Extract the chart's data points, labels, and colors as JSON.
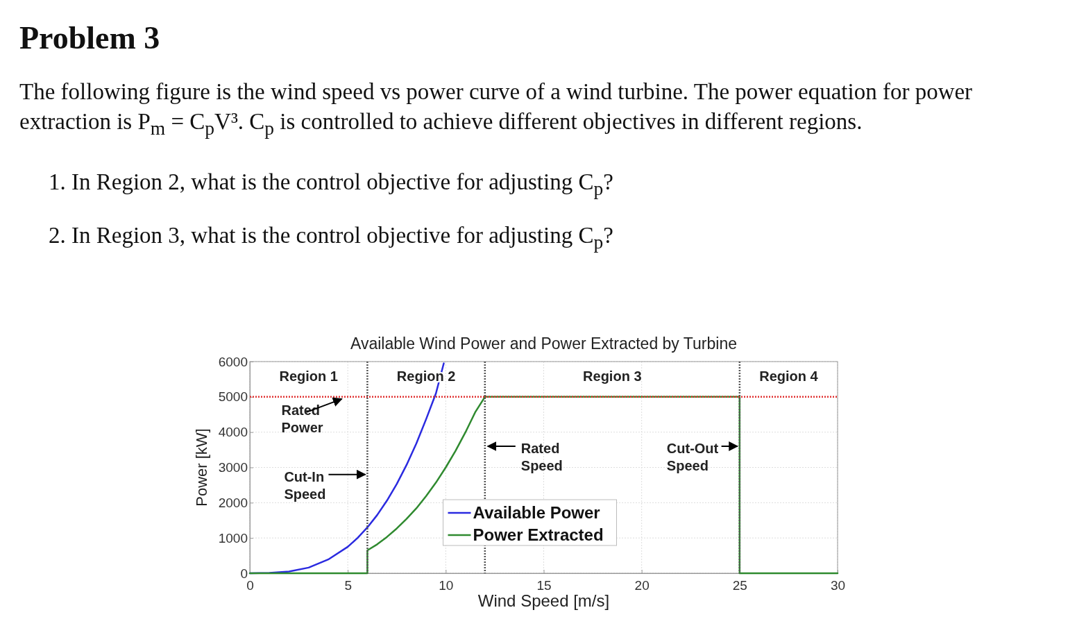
{
  "chart_data": {
    "type": "line",
    "title": "Available Wind Power and Power Extracted by Turbine",
    "xlabel": "Wind Speed [m/s]",
    "ylabel": "Power [kW]",
    "xlim": [
      0,
      30
    ],
    "xticks": [
      0,
      5,
      10,
      15,
      20,
      25,
      30
    ],
    "ylim": [
      0,
      6000
    ],
    "yticks": [
      0,
      1000,
      2000,
      3000,
      4000,
      5000,
      6000
    ],
    "grid": true,
    "legend": "bottom",
    "line_style": "solid",
    "marker": "none",
    "series": [
      {
        "name": "Available Power",
        "color": "#2a2ae0",
        "x": [
          0,
          1,
          2,
          3,
          4,
          5,
          5.5,
          6,
          6.5,
          7,
          7.5,
          8,
          8.5,
          9,
          9.5,
          9.9
        ],
        "values": [
          0,
          10,
          50,
          160,
          390,
          750,
          1000,
          1300,
          1650,
          2060,
          2530,
          3070,
          3680,
          4370,
          5100,
          5950
        ]
      },
      {
        "name": "Power Extracted",
        "color": "#2f8a2f",
        "x": [
          0,
          6,
          6,
          6.5,
          7,
          7.5,
          8,
          8.5,
          9,
          9.5,
          10,
          10.5,
          11,
          11.5,
          12,
          25,
          25,
          30
        ],
        "values": [
          0,
          0,
          650,
          820,
          1030,
          1270,
          1540,
          1840,
          2190,
          2570,
          3000,
          3470,
          3990,
          4560,
          5000,
          5000,
          0,
          0
        ]
      }
    ],
    "ref_lines": [
      {
        "axis": "y",
        "value": 5000,
        "color": "#e03030",
        "line_style": "dotted"
      },
      {
        "axis": "x",
        "value": 6,
        "color": "#555555",
        "line_style": "dotted"
      },
      {
        "axis": "x",
        "value": 12,
        "color": "#555555",
        "line_style": "dotted"
      },
      {
        "axis": "x",
        "value": 25,
        "color": "#555555",
        "line_style": "dotted"
      }
    ],
    "annotations": [
      "Problem 3",
      "The following figure is the wind speed vs power curve of a wind turbine. The power equation for power extraction is P$_{m}$ = C$_{p}$V³. C$_{p}$ is controlled to achieve different objectives in different regions.",
      "1. In Region 2, what is the control objective for adjusting C$_{p}$?",
      "2. In Region 3, what is the control objective for adjusting C$_{p}$?",
      "Region 1",
      "Region 2",
      "Region 3",
      "Region 4",
      {
        "text": "Rated\nPower",
        "x": 4.8,
        "y": 5000
      },
      {
        "text": "Cut-In\nSpeed",
        "x": 6,
        "y": 2800
      },
      {
        "text": "Rated\nSpeed",
        "x": 12,
        "y": 3600
      },
      {
        "text": "Cut-Out\nSpeed",
        "x": 25,
        "y": 3600
      }
    ]
  }
}
